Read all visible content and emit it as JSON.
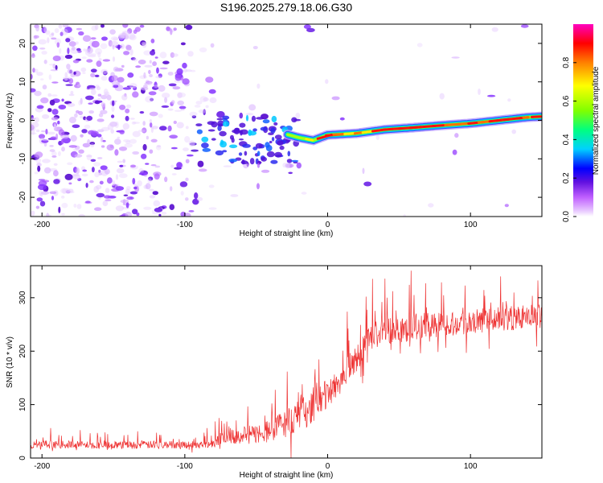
{
  "title": "S196.2025.279.18.06.G30",
  "chart_data": [
    {
      "type": "heatmap",
      "title": "S196.2025.279.18.06.G30",
      "xlabel": "Height of straight line (km)",
      "ylabel": "Frequency (Hz)",
      "xlim": [
        -208,
        150
      ],
      "ylim": [
        -25,
        25
      ],
      "xticks": [
        -200,
        -100,
        0,
        100
      ],
      "xtick_labels": [
        "-200",
        "-100",
        "0",
        "100"
      ],
      "yticks": [
        -20,
        -10,
        0,
        10,
        20
      ],
      "ytick_labels": [
        "-20",
        "-10",
        "0",
        "10",
        "20"
      ],
      "colorbar": {
        "label": "Normalized spectral amplitude",
        "range": [
          0,
          1
        ],
        "ticks": [
          0.0,
          0.2,
          0.4,
          0.6,
          0.8
        ],
        "tick_labels": [
          "0.0",
          "0.2",
          "0.4",
          "0.6",
          "0.8"
        ],
        "colors": [
          "#ffffff",
          "#c060ff",
          "#6010e0",
          "#0000ff",
          "#00d0ff",
          "#00ff80",
          "#80ff00",
          "#ffff00",
          "#ff8000",
          "#ff0000",
          "#ff00c0"
        ]
      },
      "trace": {
        "description": "narrow high-amplitude frequency line",
        "x": [
          -30,
          -20,
          -10,
          0,
          20,
          40,
          60,
          80,
          100,
          120,
          140,
          150
        ],
        "y": [
          -3.5,
          -4.5,
          -5.2,
          -3.8,
          -3.4,
          -2.4,
          -1.9,
          -1.3,
          -0.8,
          0.0,
          0.8,
          1.0
        ]
      }
    },
    {
      "type": "line",
      "xlabel": "Height of straight line (km)",
      "ylabel": "SNR (10 * v/v)",
      "xlim": [
        -208,
        150
      ],
      "ylim": [
        0,
        360
      ],
      "xticks": [
        -200,
        -100,
        0,
        100
      ],
      "xtick_labels": [
        "-200",
        "-100",
        "0",
        "100"
      ],
      "yticks": [
        0,
        100,
        200,
        300
      ],
      "ytick_labels": [
        "0",
        "100",
        "200",
        "300"
      ],
      "color": "#ee3333",
      "series": [
        {
          "name": "SNR",
          "x": [
            -208,
            -180,
            -150,
            -120,
            -90,
            -80,
            -70,
            -60,
            -50,
            -40,
            -30,
            -20,
            -10,
            0,
            10,
            20,
            30,
            40,
            60,
            80,
            100,
            120,
            150
          ],
          "y": [
            25,
            25,
            24,
            25,
            25,
            28,
            45,
            42,
            45,
            52,
            65,
            80,
            95,
            120,
            150,
            185,
            225,
            240,
            245,
            250,
            255,
            260,
            265
          ],
          "noise": [
            12,
            12,
            12,
            12,
            12,
            14,
            30,
            28,
            30,
            35,
            45,
            50,
            50,
            48,
            45,
            45,
            45,
            45,
            42,
            40,
            38,
            38,
            38
          ]
        }
      ]
    }
  ]
}
